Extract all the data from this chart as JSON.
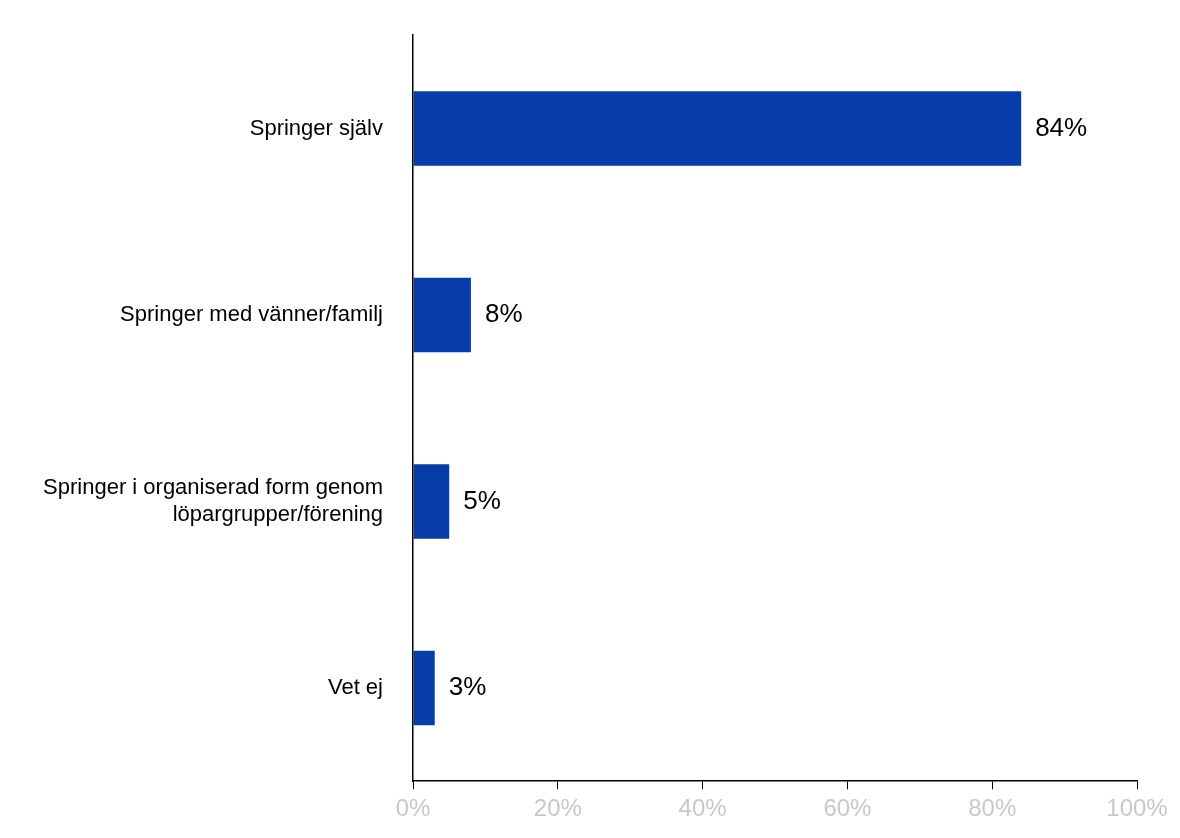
{
  "chart_data": {
    "type": "bar",
    "orientation": "horizontal",
    "categories": [
      "Springer själv",
      "Springer med vänner/familj",
      "Springer i organiserad form genom löpargrupper/förening",
      "Vet ej"
    ],
    "values": [
      84,
      8,
      5,
      3
    ],
    "value_labels": [
      "84%",
      "8%",
      "5%",
      "3%"
    ],
    "color": "#063da9",
    "xlim": [
      0,
      100
    ],
    "xticks": [
      {
        "value": 0,
        "label": "0%"
      },
      {
        "value": 20,
        "label": "20%"
      },
      {
        "value": 40,
        "label": "40%"
      },
      {
        "value": 60,
        "label": "60%"
      },
      {
        "value": 80,
        "label": "80%"
      },
      {
        "value": 100,
        "label": "100%"
      }
    ],
    "grid": false,
    "legend": false
  }
}
